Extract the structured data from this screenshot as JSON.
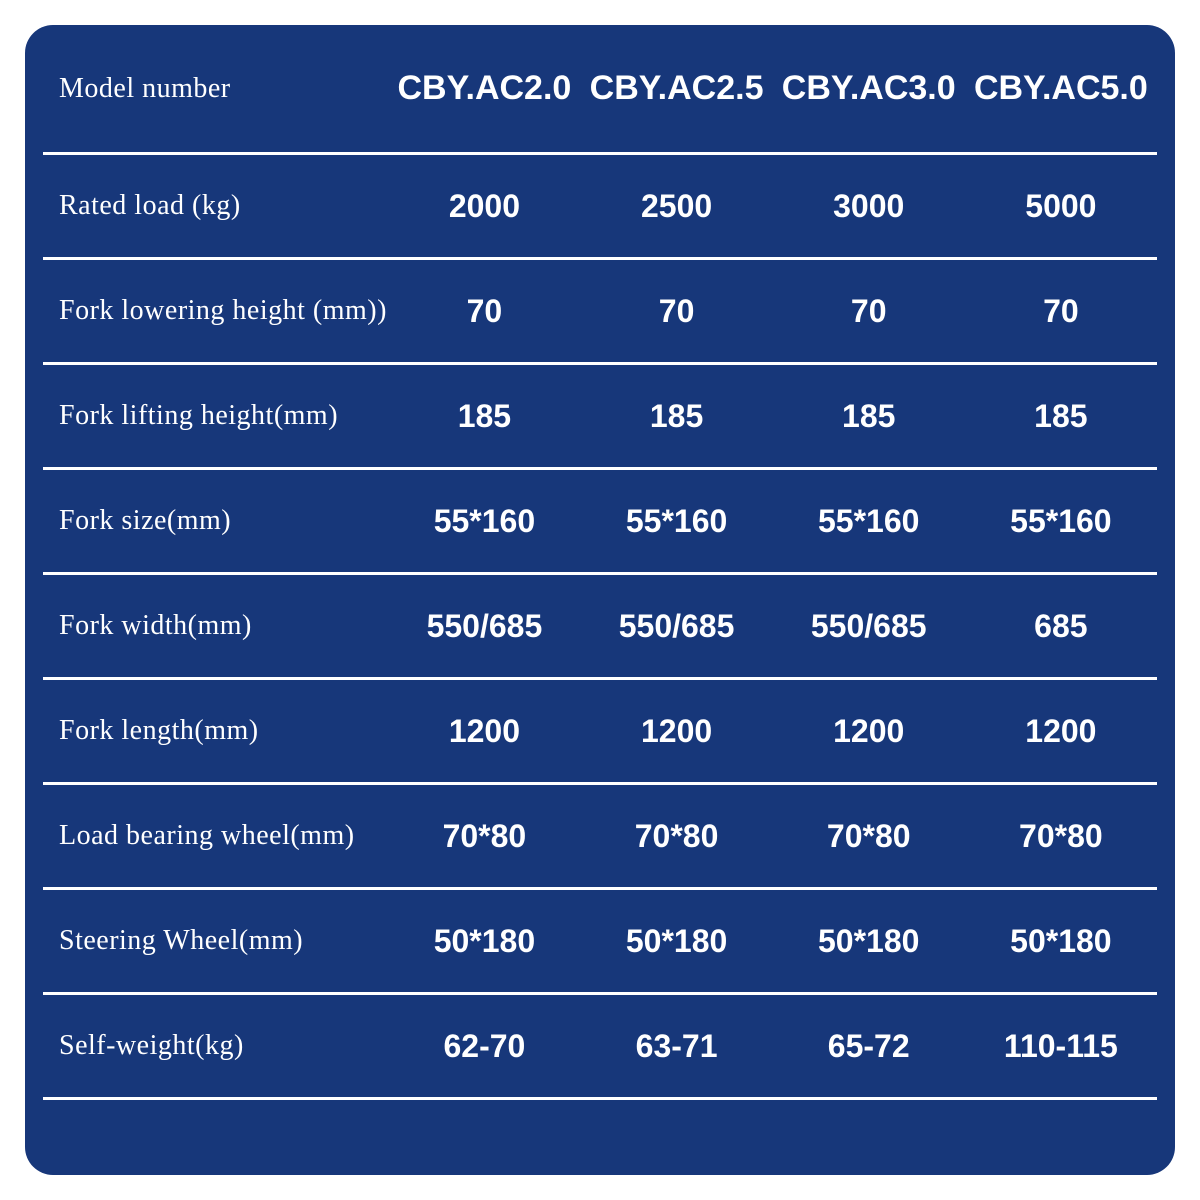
{
  "colors": {
    "page_background": "#ffffff",
    "panel_background": "#17377a",
    "text": "#ffffff",
    "divider": "#ffffff"
  },
  "table": {
    "header": {
      "label": "Model number",
      "models": [
        "CBY.AC2.0",
        "CBY.AC2.5",
        "CBY.AC3.0",
        "CBY.AC5.0"
      ]
    },
    "rows": [
      {
        "label": "Rated load (kg)",
        "values": [
          "2000",
          "2500",
          "3000",
          "5000"
        ]
      },
      {
        "label": "Fork lowering height (mm))",
        "values": [
          "70",
          "70",
          "70",
          "70"
        ]
      },
      {
        "label": "Fork lifting height(mm)",
        "values": [
          "185",
          "185",
          "185",
          "185"
        ]
      },
      {
        "label": "Fork size(mm)",
        "values": [
          "55*160",
          "55*160",
          "55*160",
          "55*160"
        ]
      },
      {
        "label": "Fork width(mm)",
        "values": [
          "550/685",
          "550/685",
          "550/685",
          "685"
        ]
      },
      {
        "label": "Fork length(mm)",
        "values": [
          "1200",
          "1200",
          "1200",
          "1200"
        ]
      },
      {
        "label": "Load bearing wheel(mm)",
        "values": [
          "70*80",
          "70*80",
          "70*80",
          "70*80"
        ]
      },
      {
        "label": "Steering Wheel(mm)",
        "values": [
          "50*180",
          "50*180",
          "50*180",
          "50*180"
        ]
      },
      {
        "label": "Self-weight(kg)",
        "values": [
          "62-70",
          "63-71",
          "65-72",
          "110-115"
        ]
      }
    ]
  }
}
